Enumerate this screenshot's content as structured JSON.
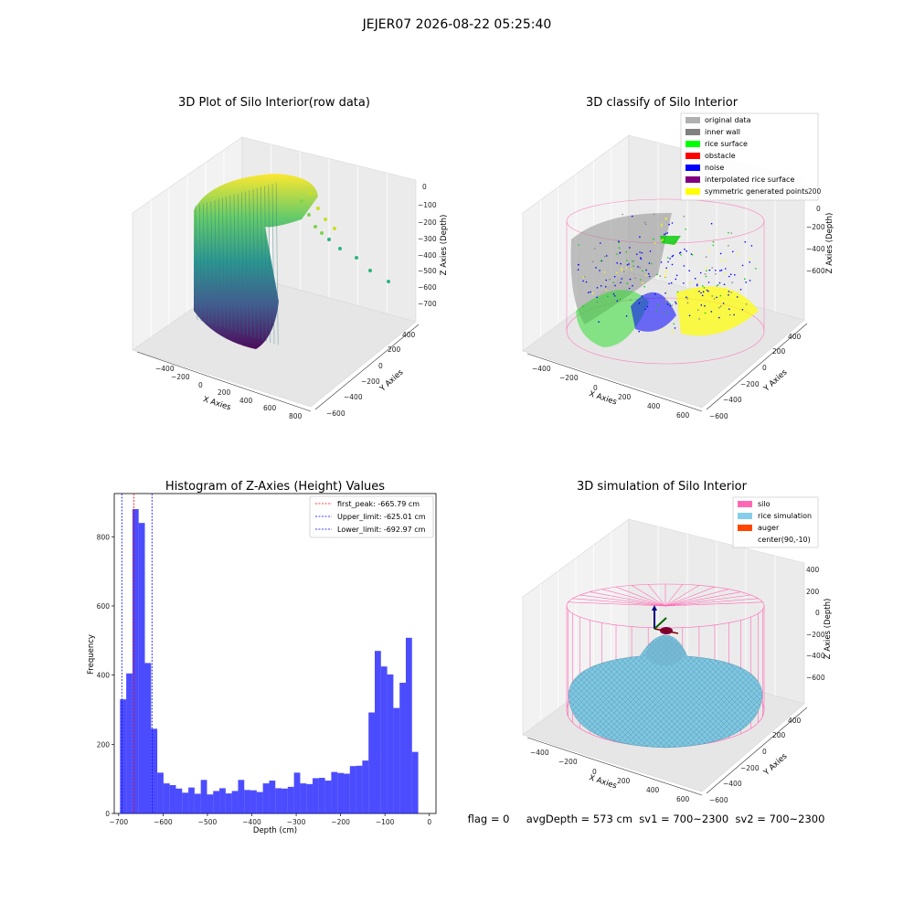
{
  "suptitle": "JEJER07 2026-08-22 05:25:40",
  "status_line": "flag = 0     avgDepth = 573 cm  sv1 = 700~2300  sv2 = 700~2300",
  "colors": {
    "pink": "#ff69b4",
    "light_blue": "#87ceeb",
    "orange_red": "#ff4500",
    "hist_blue": "#0000ff",
    "gray": "#808080",
    "light_gray": "#b0b0b0",
    "green": "#00ff00",
    "red": "#ff0000",
    "blue": "#0000ff",
    "purple": "#800080",
    "yellow": "#ffff00"
  },
  "chart_data": [
    {
      "type": "scatter",
      "projection": "3d",
      "title": "3D Plot of Silo Interior(row data)",
      "xlabel": "X Axies",
      "ylabel": "Y Axies",
      "zlabel": "Z Axies (Depth)",
      "xticks": [
        "−400",
        "−200",
        "0",
        "200",
        "400",
        "600",
        "800"
      ],
      "yticks": [
        "−600",
        "−400",
        "−200",
        "0",
        "200",
        "400"
      ],
      "zticks": [
        "0",
        "−100",
        "−200",
        "−300",
        "−400",
        "−500",
        "−600",
        "−700"
      ],
      "colormap": "viridis",
      "grid": true
    },
    {
      "type": "scatter",
      "projection": "3d",
      "title": "3D classify of Silo Interior",
      "xlabel": "X Axies",
      "ylabel": "Y Axies",
      "zlabel": "Z Axies (Depth)",
      "xticks": [
        "−400",
        "−200",
        "0",
        "200",
        "400",
        "600"
      ],
      "yticks": [
        "−600",
        "−400",
        "−200",
        "0",
        "200",
        "400"
      ],
      "zticks": [
        "200",
        "0",
        "−200",
        "−400",
        "−600"
      ],
      "legend": {
        "position": "top-right",
        "entries": [
          {
            "label": "original data",
            "color": "#b0b0b0"
          },
          {
            "label": "inner wall",
            "color": "#808080"
          },
          {
            "label": "rice surface",
            "color": "#00ff00"
          },
          {
            "label": "obstacle",
            "color": "#ff0000"
          },
          {
            "label": "noise",
            "color": "#0000ff"
          },
          {
            "label": "interpolated rice surface",
            "color": "#800080"
          },
          {
            "label": "symmetric generated points",
            "color": "#ffff00"
          }
        ]
      },
      "grid": true
    },
    {
      "type": "bar",
      "subtype": "histogram",
      "title": "Histogram of Z-Axies (Height) Values",
      "xlabel": "Depth (cm)",
      "ylabel": "Frequency",
      "xlim": [
        -710,
        15
      ],
      "ylim": [
        0,
        925
      ],
      "xticks": [
        -700,
        -600,
        -500,
        -400,
        -300,
        -200,
        -100,
        0
      ],
      "xtick_labels": [
        "−700",
        "−600",
        "−500",
        "−400",
        "−300",
        "−200",
        "−100",
        "0"
      ],
      "yticks": [
        0,
        200,
        400,
        600,
        800
      ],
      "yticks_labels": [
        "0",
        "200",
        "400",
        "600",
        "800"
      ],
      "bin_start": -697,
      "bin_width": 14,
      "values": [
        330,
        405,
        880,
        840,
        435,
        245,
        118,
        87,
        82,
        72,
        60,
        75,
        57,
        97,
        55,
        65,
        73,
        58,
        65,
        97,
        68,
        67,
        62,
        87,
        95,
        73,
        72,
        77,
        118,
        87,
        85,
        102,
        103,
        95,
        120,
        117,
        115,
        137,
        138,
        153,
        292,
        470,
        425,
        402,
        305,
        378,
        508,
        178
      ],
      "vlines": [
        {
          "x": -665.79,
          "label": "first_peak: -665.79 cm",
          "color": "#ff0000"
        },
        {
          "x": -625.01,
          "label": "Upper_limit: -625.01 cm",
          "color": "#0000ff"
        },
        {
          "x": -692.97,
          "label": "Lower_limit: -692.97 cm",
          "color": "#0000ff"
        }
      ],
      "legend": {
        "position": "top-right"
      },
      "grid": false
    },
    {
      "type": "surface",
      "projection": "3d",
      "title": "3D simulation of Silo Interior",
      "xlabel": "X Axies",
      "ylabel": "Y Axies",
      "zlabel": "Z Axies (Depth)",
      "xticks": [
        "−400",
        "−200",
        "0",
        "200",
        "400",
        "600"
      ],
      "yticks": [
        "−600",
        "−400",
        "−200",
        "0",
        "200",
        "400"
      ],
      "zticks": [
        "400",
        "200",
        "0",
        "−200",
        "−400",
        "−600"
      ],
      "legend": {
        "position": "top-right",
        "entries": [
          {
            "label": "silo",
            "color": "#ff69b4"
          },
          {
            "label": "rice simulation",
            "color": "#87ceeb"
          },
          {
            "label": "auger",
            "color": "#ff4500"
          },
          {
            "label": "center(90,-10)",
            "color": ""
          }
        ]
      },
      "grid": true
    }
  ]
}
